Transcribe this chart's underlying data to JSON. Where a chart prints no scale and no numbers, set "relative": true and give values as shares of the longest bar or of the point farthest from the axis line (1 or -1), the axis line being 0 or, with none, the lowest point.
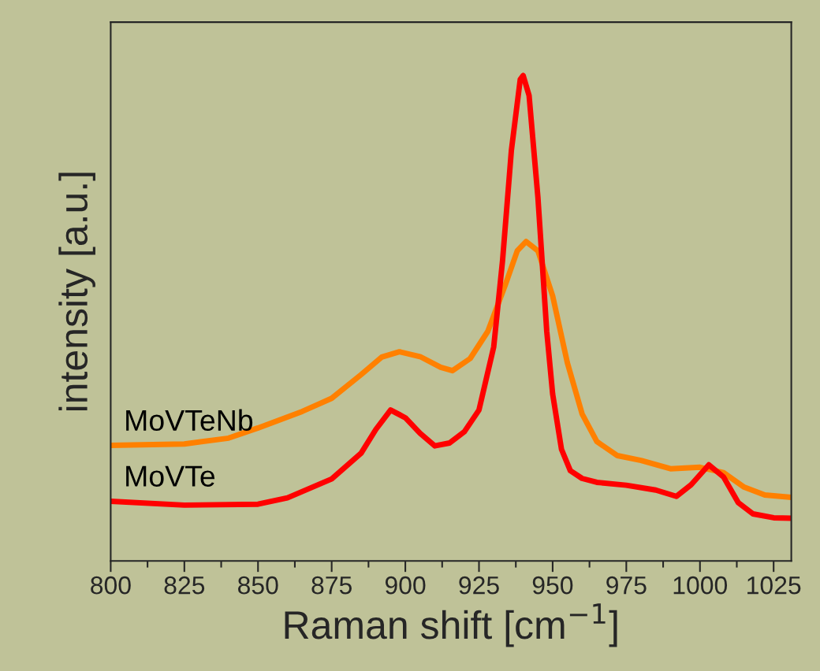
{
  "chart_data": {
    "type": "line",
    "xlabel": "Raman shift [cm$^{−1}$]",
    "ylabel": "intensity [a.u.]",
    "relative": true,
    "xlim": [
      800,
      1031
    ],
    "xticks": [
      800,
      825,
      850,
      875,
      900,
      925,
      950,
      975,
      1000,
      1025
    ],
    "grid": false,
    "legend": false,
    "marker": "none",
    "line_style": "solid",
    "series": [
      {
        "name": "MoVTeNb",
        "color": "#ff8000",
        "x": [
          800,
          825,
          840,
          850,
          865,
          875,
          885,
          892,
          898,
          905,
          912,
          916,
          922,
          928,
          934,
          938,
          941,
          945,
          950,
          955,
          960,
          965,
          972,
          980,
          990,
          1000,
          1008,
          1015,
          1022,
          1031
        ],
        "values": [
          0.238,
          0.241,
          0.253,
          0.274,
          0.308,
          0.335,
          0.384,
          0.42,
          0.431,
          0.421,
          0.399,
          0.392,
          0.417,
          0.473,
          0.57,
          0.639,
          0.658,
          0.639,
          0.546,
          0.408,
          0.303,
          0.246,
          0.217,
          0.207,
          0.19,
          0.193,
          0.182,
          0.152,
          0.136,
          0.131
        ]
      },
      {
        "name": "MoVTe",
        "color": "#ff0000",
        "x": [
          800,
          825,
          850,
          860,
          875,
          885,
          890,
          895,
          900,
          905,
          910,
          915,
          920,
          925,
          930,
          933,
          936,
          939,
          940,
          942,
          945,
          948,
          950,
          953,
          956,
          960,
          965,
          975,
          985,
          992,
          997,
          1003,
          1008,
          1013,
          1018,
          1025,
          1031
        ],
        "values": [
          0.123,
          0.115,
          0.117,
          0.13,
          0.169,
          0.222,
          0.271,
          0.311,
          0.295,
          0.263,
          0.237,
          0.243,
          0.266,
          0.311,
          0.441,
          0.619,
          0.846,
          0.992,
          1,
          0.959,
          0.749,
          0.473,
          0.344,
          0.23,
          0.186,
          0.17,
          0.162,
          0.156,
          0.146,
          0.133,
          0.157,
          0.198,
          0.173,
          0.12,
          0.097,
          0.089,
          0.088
        ]
      }
    ]
  }
}
